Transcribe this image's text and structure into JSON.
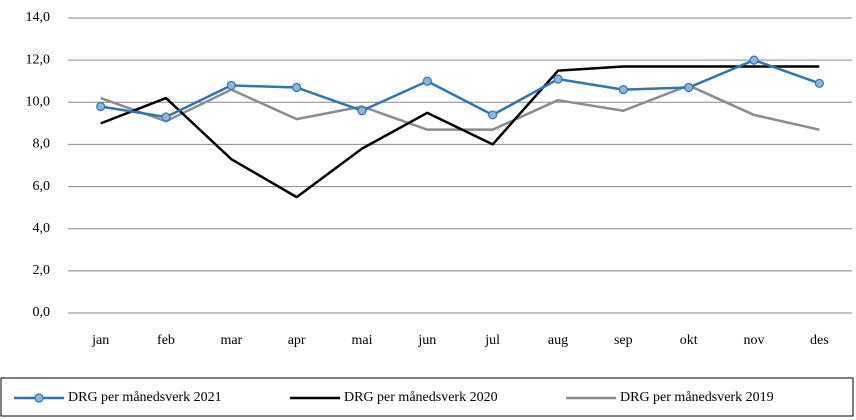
{
  "chart_data": {
    "type": "line",
    "categories": [
      "jan",
      "feb",
      "mar",
      "apr",
      "mai",
      "jun",
      "jul",
      "aug",
      "sep",
      "okt",
      "nov",
      "des"
    ],
    "series": [
      {
        "name": "DRG per månedsverk 2021",
        "color": "#2e75b6",
        "marker": true,
        "values": [
          9.8,
          9.3,
          10.8,
          10.7,
          9.6,
          11.0,
          9.4,
          11.1,
          10.6,
          10.7,
          12.0,
          10.9
        ]
      },
      {
        "name": "DRG per månedsverk 2020",
        "color": "#000000",
        "marker": false,
        "values": [
          9.0,
          10.2,
          7.3,
          5.5,
          7.8,
          9.5,
          8.0,
          11.5,
          11.7,
          11.7,
          11.7,
          11.7
        ]
      },
      {
        "name": "DRG per månedsverk 2019",
        "color": "#8c8c8c",
        "marker": false,
        "values": [
          10.2,
          9.1,
          10.6,
          9.2,
          9.8,
          8.7,
          8.7,
          10.1,
          9.6,
          10.8,
          9.4,
          8.7
        ]
      }
    ],
    "ylim": [
      0,
      14
    ],
    "yticks": [
      {
        "value": 0,
        "label": "0,0"
      },
      {
        "value": 2,
        "label": "2,0"
      },
      {
        "value": 4,
        "label": "4,0"
      },
      {
        "value": 6,
        "label": "6,0"
      },
      {
        "value": 8,
        "label": "8,0"
      },
      {
        "value": 10,
        "label": "10,0"
      },
      {
        "value": 12,
        "label": "12,0"
      },
      {
        "value": 14,
        "label": "14,0"
      }
    ],
    "grid": true,
    "legend": "bottom"
  }
}
